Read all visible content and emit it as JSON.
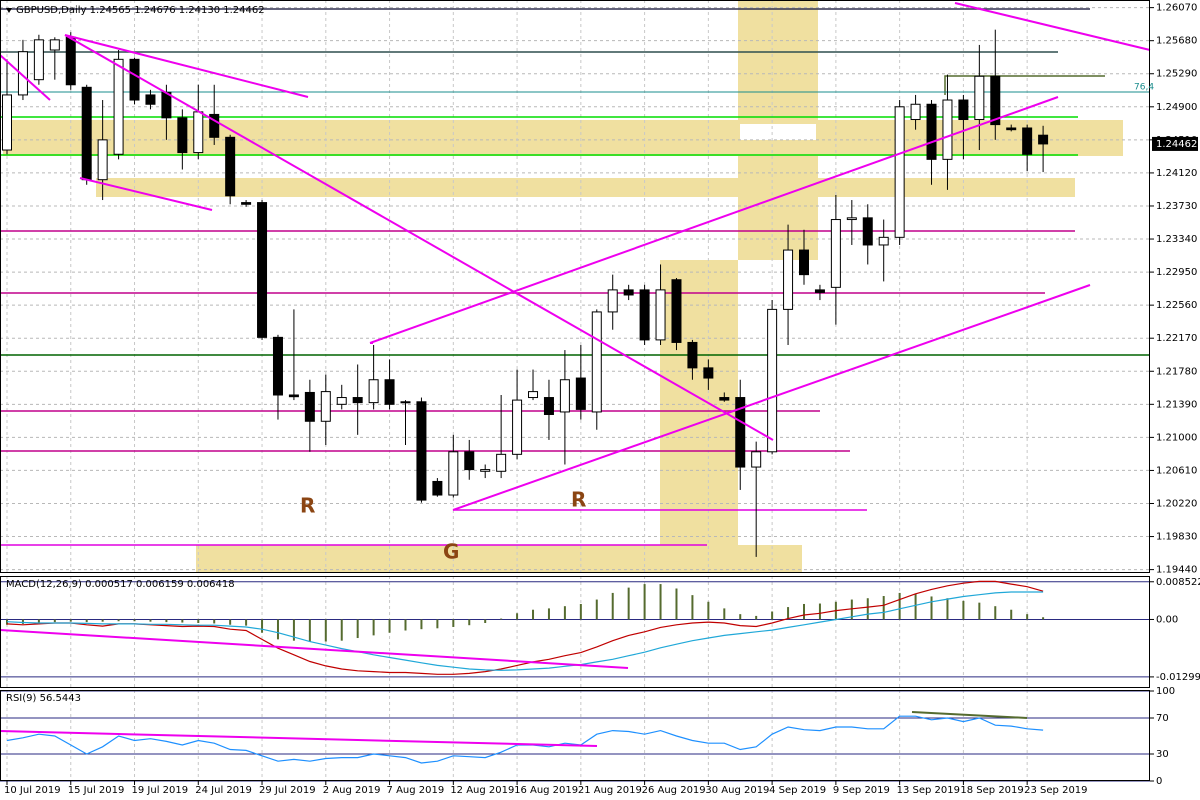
{
  "chart_data": [
    {
      "type": "candlestick",
      "title": "GBPUSD,Daily 1.24565 1.24676 1.24130 1.24462",
      "categories": [
        "10 Jul 2019",
        null,
        null,
        null,
        "15 Jul 2019",
        null,
        null,
        null,
        "19 Jul 2019",
        null,
        null,
        null,
        "24 Jul 2019",
        null,
        null,
        null,
        "29 Jul 2019",
        null,
        null,
        null,
        "2 Aug 2019",
        null,
        null,
        null,
        "7 Aug 2019",
        null,
        null,
        null,
        "12 Aug 2019",
        null,
        null,
        null,
        "16 Aug 2019",
        null,
        null,
        null,
        "21 Aug 2019",
        null,
        null,
        null,
        "26 Aug 2019",
        null,
        null,
        null,
        "30 Aug 2019",
        null,
        null,
        null,
        "4 Sep 2019",
        null,
        null,
        null,
        "9 Sep 2019",
        null,
        null,
        null,
        "13 Sep 2019",
        null,
        null,
        null,
        "18 Sep 2019",
        null,
        null,
        null,
        "23 Sep 2019",
        null
      ],
      "open": [
        1.2439,
        1.2504,
        1.2522,
        1.2557,
        1.2572,
        1.2513,
        1.2404,
        1.2434,
        1.2546,
        1.2504,
        1.2507,
        1.2477,
        1.2436,
        1.2481,
        1.2454,
        1.2377,
        1.2377,
        1.2218,
        1.215,
        1.2153,
        1.2119,
        1.2139,
        1.2147,
        1.2141,
        1.2168,
        1.2142,
        1.2142,
        1.2048,
        1.2032,
        1.2083,
        1.206,
        1.206,
        1.208,
        1.2147,
        1.2147,
        1.213,
        1.217,
        1.213,
        1.2248,
        1.2274,
        1.2274,
        1.2215,
        1.2286,
        1.2212,
        1.2182,
        1.2147,
        1.2147,
        1.2065,
        1.2083,
        1.2251,
        1.2321,
        1.2274,
        1.2277,
        1.2357,
        1.2359,
        1.2327,
        1.2336,
        1.2475,
        1.2493,
        1.2428,
        1.2498,
        1.2475,
        1.2526,
        1.2465,
        1.2465,
        1.24565
      ],
      "high": [
        1.2546,
        1.2569,
        1.2575,
        1.2572,
        1.2578,
        1.2516,
        1.2498,
        1.2557,
        1.2548,
        1.251,
        1.2516,
        1.2487,
        1.2516,
        1.2516,
        1.2457,
        1.238,
        1.238,
        1.2221,
        1.2251,
        1.2168,
        1.2174,
        1.2162,
        1.2186,
        1.2209,
        1.2192,
        1.2144,
        1.2147,
        1.2052,
        1.2103,
        1.2097,
        1.2068,
        1.215,
        1.218,
        1.218,
        1.2168,
        1.2203,
        1.2209,
        1.2251,
        1.2292,
        1.228,
        1.228,
        1.2304,
        1.2288,
        1.2215,
        1.2192,
        1.2153,
        1.2168,
        1.2095,
        1.2262,
        1.2351,
        1.2345,
        1.228,
        1.2386,
        1.238,
        1.2375,
        1.2357,
        1.2498,
        1.2504,
        1.2498,
        1.2528,
        1.2504,
        1.2563,
        1.2581,
        1.2469,
        1.2469,
        1.24676
      ],
      "low": [
        1.2434,
        1.2498,
        1.2516,
        1.2522,
        1.251,
        1.2398,
        1.238,
        1.2428,
        1.2493,
        1.2487,
        1.2451,
        1.2416,
        1.2428,
        1.2445,
        1.2375,
        1.2372,
        1.2215,
        1.2121,
        1.2144,
        1.2083,
        1.2091,
        1.2133,
        1.2103,
        1.2133,
        1.2133,
        1.2091,
        1.2023,
        1.203,
        1.2029,
        1.205,
        1.2052,
        1.2052,
        1.2074,
        1.2144,
        1.2097,
        1.2068,
        1.2121,
        1.2109,
        1.2227,
        1.2262,
        1.2209,
        1.2209,
        1.2203,
        1.2168,
        1.2156,
        1.2142,
        1.2038,
        1.1959,
        1.208,
        1.2209,
        1.228,
        1.2262,
        1.2233,
        1.2327,
        1.2304,
        1.2284,
        1.2327,
        1.2463,
        1.2398,
        1.2392,
        1.2428,
        1.2439,
        1.2451,
        1.2461,
        1.2414,
        1.2413
      ],
      "close": [
        1.2504,
        1.2555,
        1.2569,
        1.2569,
        1.2516,
        1.2404,
        1.2451,
        1.2546,
        1.2498,
        1.2493,
        1.2477,
        1.2436,
        1.2484,
        1.2454,
        1.2385,
        1.2375,
        1.2218,
        1.215,
        1.2148,
        1.2119,
        1.2154,
        1.2147,
        1.2141,
        1.2168,
        1.2139,
        1.2141,
        1.2026,
        1.2032,
        1.2083,
        1.2062,
        1.2062,
        1.208,
        1.2144,
        1.2154,
        1.2127,
        1.2168,
        1.2133,
        1.2248,
        1.2274,
        1.2268,
        1.2215,
        1.2274,
        1.2212,
        1.2182,
        1.217,
        1.2144,
        1.2065,
        1.2083,
        1.2251,
        1.2321,
        1.2292,
        1.2271,
        1.2357,
        1.2359,
        1.2327,
        1.2336,
        1.249,
        1.2493,
        1.2428,
        1.2498,
        1.2475,
        1.2526,
        1.2469,
        1.2463,
        1.2434,
        1.24462
      ],
      "up_color": "#ffffff",
      "down_color": "#000000",
      "ylim": [
        1.194,
        1.2616
      ],
      "yticks": [
        {
          "value": 1.1944,
          "label": "1.19440"
        },
        {
          "value": 1.1983,
          "label": "1.19830"
        },
        {
          "value": 1.2022,
          "label": "1.20220"
        },
        {
          "value": 1.2061,
          "label": "1.20610"
        },
        {
          "value": 1.21,
          "label": "1.21000"
        },
        {
          "value": 1.2139,
          "label": "1.21390"
        },
        {
          "value": 1.2178,
          "label": "1.21780"
        },
        {
          "value": 1.2217,
          "label": "1.22170"
        },
        {
          "value": 1.2256,
          "label": "1.22560"
        },
        {
          "value": 1.2295,
          "label": "1.22950"
        },
        {
          "value": 1.2334,
          "label": "1.23340"
        },
        {
          "value": 1.2373,
          "label": "1.23730"
        },
        {
          "value": 1.2412,
          "label": "1.24120"
        },
        {
          "value": 1.2451,
          "label": "1.24510"
        },
        {
          "value": 1.249,
          "label": "1.24900"
        },
        {
          "value": 1.2529,
          "label": "1.25290"
        },
        {
          "value": 1.2568,
          "label": "1.25680"
        },
        {
          "value": 1.2607,
          "label": "1.26070"
        }
      ],
      "grid": true,
      "annotations": [
        "R",
        "R",
        "G",
        "76,4"
      ]
    },
    {
      "type": "macd",
      "title": "MACD(12,26,9) 0.000517 0.006159 0.006418",
      "values": [
        -0.0012,
        -0.001,
        -0.0008,
        -0.0006,
        -0.0005,
        -0.0006,
        -0.0005,
        -0.0004,
        -0.0004,
        -0.0005,
        -0.0006,
        -0.0007,
        -0.0008,
        -0.0009,
        -0.0012,
        -0.0014,
        -0.003,
        -0.0045,
        -0.0048,
        -0.005,
        -0.005,
        -0.0048,
        -0.0042,
        -0.0036,
        -0.003,
        -0.0025,
        -0.0022,
        -0.002,
        -0.0017,
        -0.0013,
        -0.0008,
        0.0002,
        0.0014,
        0.0022,
        0.0025,
        0.003,
        0.0035,
        0.0045,
        0.006,
        0.0072,
        0.008,
        0.008,
        0.007,
        0.0055,
        0.004,
        0.0025,
        0.0012,
        0.0008,
        0.0018,
        0.0028,
        0.0035,
        0.0036,
        0.004,
        0.0045,
        0.0048,
        0.0053,
        0.006,
        0.0058,
        0.0052,
        0.0048,
        0.0042,
        0.0038,
        0.003,
        0.0022,
        0.0012,
        0.0005
      ],
      "color": "#556b2f",
      "lines": [
        {
          "color": "#c00000",
          "values": [
            -0.001,
            -0.0012,
            -0.001,
            -0.0008,
            -0.0008,
            -0.0012,
            -0.0015,
            -0.001,
            -0.001,
            -0.0012,
            -0.0014,
            -0.0016,
            -0.0015,
            -0.0016,
            -0.0022,
            -0.0025,
            -0.0045,
            -0.0065,
            -0.008,
            -0.0095,
            -0.0105,
            -0.0112,
            -0.0116,
            -0.0118,
            -0.012,
            -0.012,
            -0.0122,
            -0.0124,
            -0.0124,
            -0.0122,
            -0.0118,
            -0.0112,
            -0.0104,
            -0.0096,
            -0.009,
            -0.0082,
            -0.0075,
            -0.0062,
            -0.0048,
            -0.0036,
            -0.0028,
            -0.0018,
            -0.0012,
            -0.0008,
            -0.0006,
            -0.0008,
            -0.0014,
            -0.0016,
            -0.0008,
            0.0002,
            0.001,
            0.0014,
            0.002,
            0.0024,
            0.0028,
            0.0032,
            0.0045,
            0.0058,
            0.0068,
            0.0076,
            0.0082,
            0.0086,
            0.0086,
            0.008,
            0.0074,
            0.0064
          ]
        },
        {
          "color": "#20a8d8",
          "values": [
            -0.0005,
            -0.0007,
            -0.0008,
            -0.0008,
            -0.0008,
            -0.0009,
            -0.001,
            -0.001,
            -0.001,
            -0.0011,
            -0.0011,
            -0.0012,
            -0.0013,
            -0.0013,
            -0.0015,
            -0.0017,
            -0.0022,
            -0.003,
            -0.004,
            -0.005,
            -0.0058,
            -0.0066,
            -0.0073,
            -0.008,
            -0.0086,
            -0.0092,
            -0.0098,
            -0.0104,
            -0.0108,
            -0.0112,
            -0.0114,
            -0.0115,
            -0.0114,
            -0.0112,
            -0.011,
            -0.0106,
            -0.0102,
            -0.0096,
            -0.009,
            -0.0082,
            -0.0074,
            -0.0064,
            -0.0056,
            -0.0048,
            -0.0042,
            -0.0036,
            -0.0032,
            -0.0028,
            -0.0024,
            -0.0018,
            -0.0012,
            -0.0006,
            0.0,
            0.0006,
            0.0012,
            0.0016,
            0.0024,
            0.0032,
            0.004,
            0.0046,
            0.0052,
            0.0056,
            0.006,
            0.0062,
            0.0062,
            0.0062
          ]
        }
      ],
      "ylim": [
        -0.0155,
        0.0096
      ],
      "yticks": [
        -0.01299,
        {
          "value": 0,
          "label": "0.00"
        },
        0.008522
      ]
    },
    {
      "type": "line",
      "title": "RSI(9) 56.5443",
      "values": [
        45,
        48,
        52,
        50,
        40,
        30,
        38,
        50,
        45,
        47,
        44,
        40,
        45,
        42,
        35,
        34,
        28,
        22,
        24,
        22,
        25,
        26,
        26,
        30,
        28,
        26,
        20,
        22,
        28,
        27,
        26,
        32,
        40,
        40,
        38,
        42,
        40,
        52,
        56,
        55,
        52,
        56,
        50,
        45,
        42,
        42,
        35,
        38,
        52,
        60,
        57,
        56,
        60,
        60,
        58,
        58,
        72,
        72,
        68,
        70,
        66,
        70,
        62,
        61,
        58,
        56.5443
      ],
      "color": "#1e90ff",
      "ylim": [
        0,
        100
      ],
      "yticks": [
        0,
        30,
        70,
        100
      ]
    }
  ]
}
